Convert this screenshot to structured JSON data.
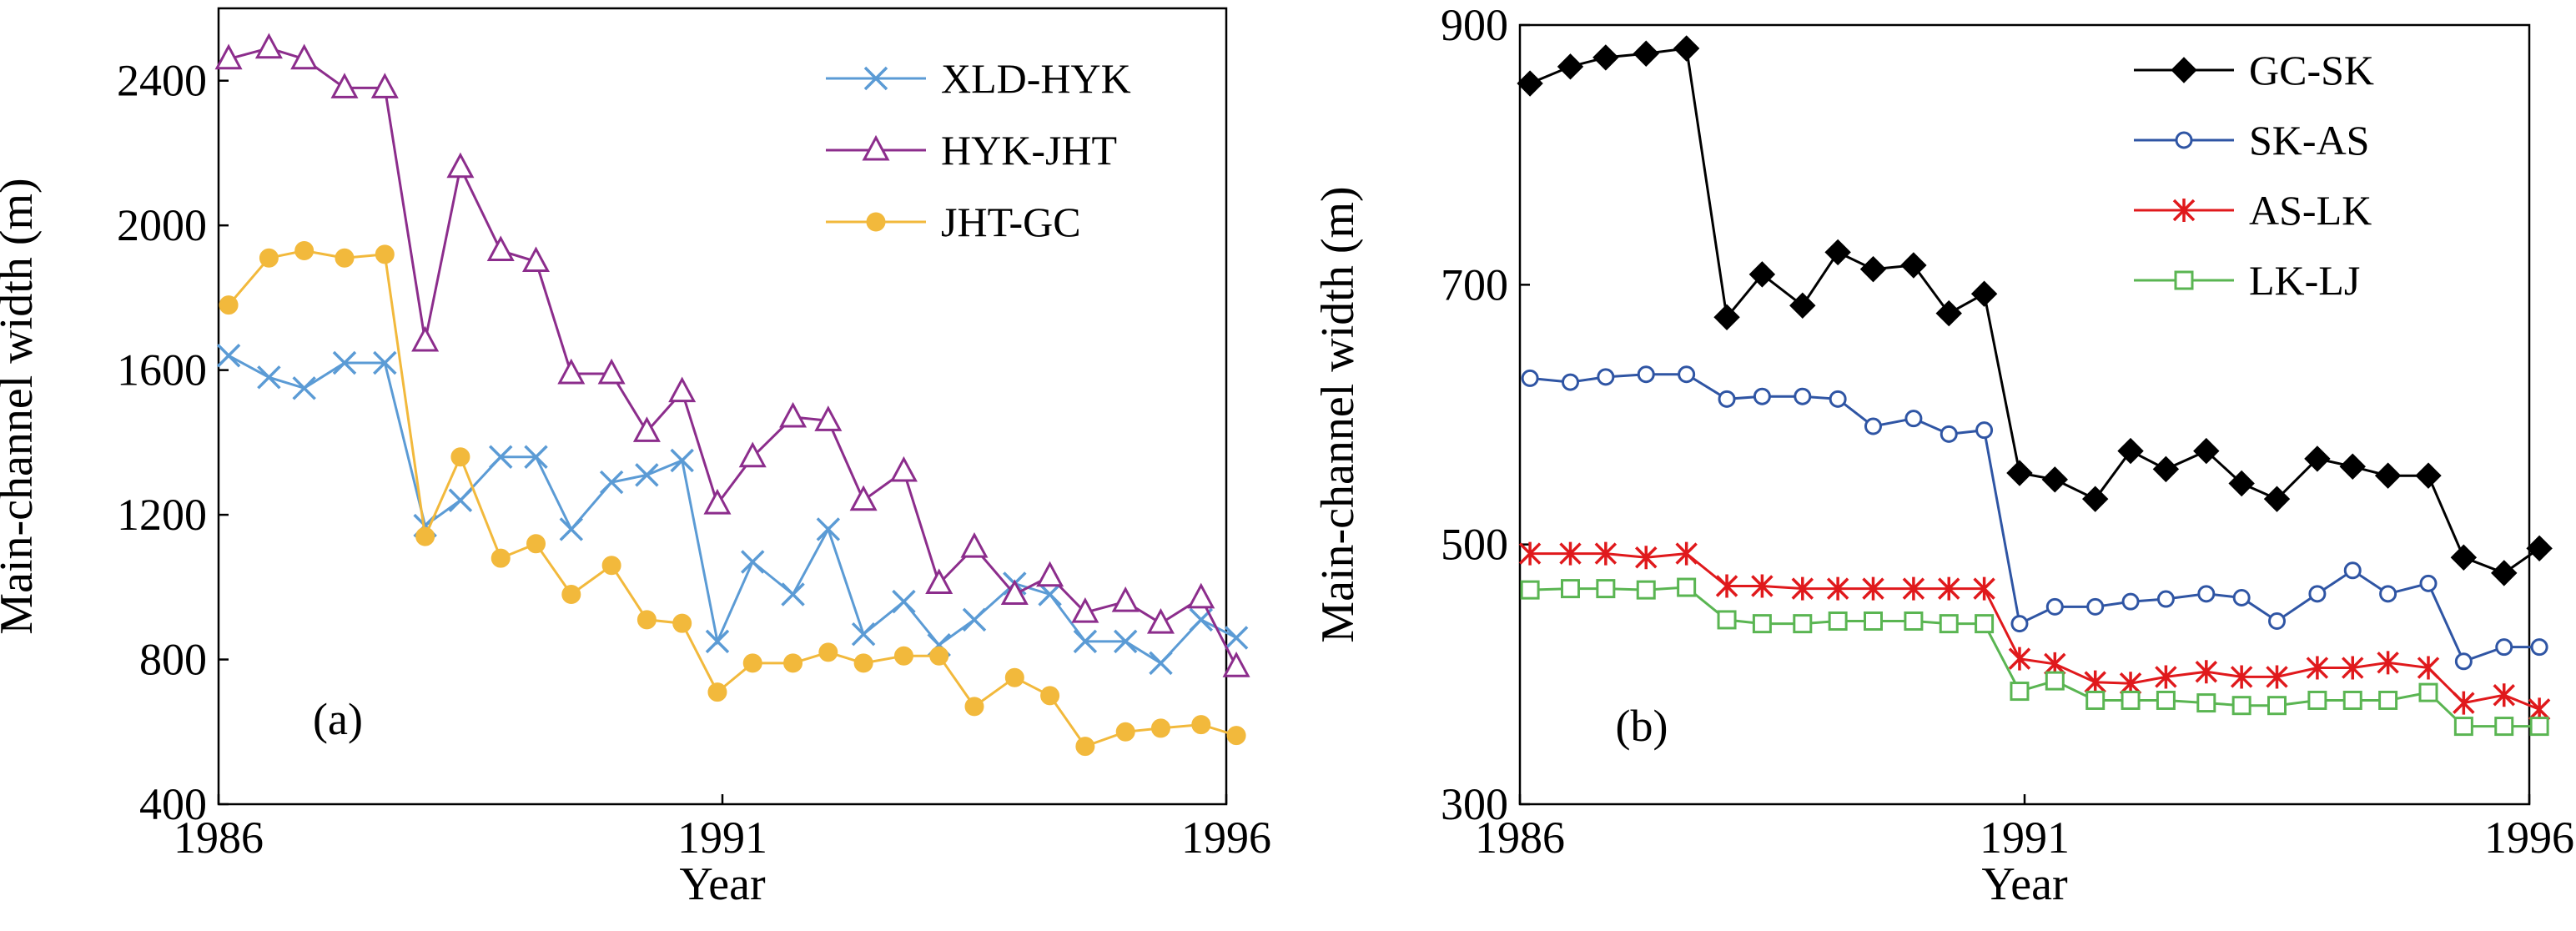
{
  "figure": {
    "panels": [
      {
        "tag": "(a)",
        "xlabel": "Year",
        "ylabel": "Main-channel width (m)"
      },
      {
        "tag": "(b)",
        "xlabel": "Year",
        "ylabel": "Main-channel width (m)"
      }
    ]
  },
  "chart_data": [
    {
      "type": "line",
      "title": "",
      "tag": "(a)",
      "xlabel": "Year",
      "ylabel": "Main-channel width (m)",
      "xlim": [
        1986,
        1996
      ],
      "ylim": [
        400,
        2600
      ],
      "xticks": [
        1986,
        1991,
        1996
      ],
      "yticks": [
        400,
        800,
        1200,
        1600,
        2000,
        2400
      ],
      "grid": false,
      "legend_position": "top-right",
      "x": [
        1986.1,
        1986.5,
        1986.85,
        1987.25,
        1987.65,
        1988.05,
        1988.4,
        1988.8,
        1989.15,
        1989.5,
        1989.9,
        1990.25,
        1990.6,
        1990.95,
        1991.3,
        1991.7,
        1992.05,
        1992.4,
        1992.8,
        1993.15,
        1993.5,
        1993.9,
        1994.25,
        1994.6,
        1995.0,
        1995.35,
        1995.75,
        1996.1
      ],
      "series": [
        {
          "name": "XLD-HYK",
          "color": "#5b9bd5",
          "marker": "x",
          "values": [
            1640,
            1580,
            1550,
            1620,
            1620,
            1170,
            1240,
            1360,
            1360,
            1160,
            1290,
            1310,
            1350,
            850,
            1070,
            980,
            1160,
            870,
            960,
            840,
            910,
            1010,
            980,
            850,
            850,
            790,
            910,
            860
          ]
        },
        {
          "name": "HYK-JHT",
          "color": "#8c2d8c",
          "marker": "triangle",
          "values": [
            2460,
            2490,
            2460,
            2380,
            2380,
            1680,
            2160,
            1930,
            1900,
            1590,
            1590,
            1430,
            1540,
            1230,
            1360,
            1470,
            1460,
            1240,
            1320,
            1010,
            1110,
            980,
            1030,
            930,
            960,
            900,
            970,
            780
          ]
        },
        {
          "name": "JHT-GC",
          "color": "#f2b93c",
          "marker": "circle",
          "values": [
            1780,
            1910,
            1930,
            1910,
            1920,
            1140,
            1360,
            1080,
            1120,
            980,
            1060,
            910,
            900,
            710,
            790,
            790,
            820,
            790,
            810,
            810,
            670,
            750,
            700,
            560,
            600,
            610,
            620,
            590
          ]
        }
      ]
    },
    {
      "type": "line",
      "title": "",
      "tag": "(b)",
      "xlabel": "Year",
      "ylabel": "Main-channel width (m)",
      "xlim": [
        1986,
        1996
      ],
      "ylim": [
        300,
        900
      ],
      "xticks": [
        1986,
        1991,
        1996
      ],
      "yticks": [
        300,
        500,
        700,
        900
      ],
      "grid": false,
      "legend_position": "top-right",
      "x": [
        1986.1,
        1986.5,
        1986.85,
        1987.25,
        1987.65,
        1988.05,
        1988.4,
        1988.8,
        1989.15,
        1989.5,
        1989.9,
        1990.25,
        1990.6,
        1990.95,
        1991.3,
        1991.7,
        1992.05,
        1992.4,
        1992.8,
        1993.15,
        1993.5,
        1993.9,
        1994.25,
        1994.6,
        1995.0,
        1995.35,
        1995.75,
        1996.1
      ],
      "series": [
        {
          "name": "GC-SK",
          "color": "#000000",
          "marker": "diamond",
          "values": [
            855,
            868,
            875,
            878,
            882,
            675,
            708,
            684,
            725,
            712,
            715,
            678,
            693,
            555,
            550,
            535,
            572,
            558,
            572,
            547,
            535,
            566,
            560,
            553,
            553,
            490,
            478,
            497
          ]
        },
        {
          "name": "SK-AS",
          "color": "#2f55a4",
          "marker": "circle-open",
          "values": [
            628,
            625,
            629,
            631,
            631,
            612,
            614,
            614,
            612,
            591,
            597,
            585,
            588,
            439,
            452,
            452,
            456,
            458,
            462,
            459,
            441,
            462,
            480,
            462,
            470,
            410,
            421,
            421
          ]
        },
        {
          "name": "AS-LK",
          "color": "#e0191c",
          "marker": "asterisk",
          "values": [
            493,
            493,
            493,
            490,
            493,
            468,
            468,
            466,
            466,
            466,
            466,
            466,
            466,
            412,
            408,
            394,
            393,
            398,
            402,
            398,
            398,
            405,
            405,
            409,
            405,
            378,
            384,
            373
          ]
        },
        {
          "name": "LK-LJ",
          "color": "#5ab552",
          "marker": "square-open",
          "values": [
            465,
            466,
            466,
            465,
            467,
            442,
            439,
            439,
            441,
            441,
            441,
            439,
            439,
            387,
            395,
            380,
            380,
            380,
            378,
            376,
            376,
            380,
            380,
            380,
            386,
            360,
            360,
            360
          ]
        }
      ]
    }
  ]
}
